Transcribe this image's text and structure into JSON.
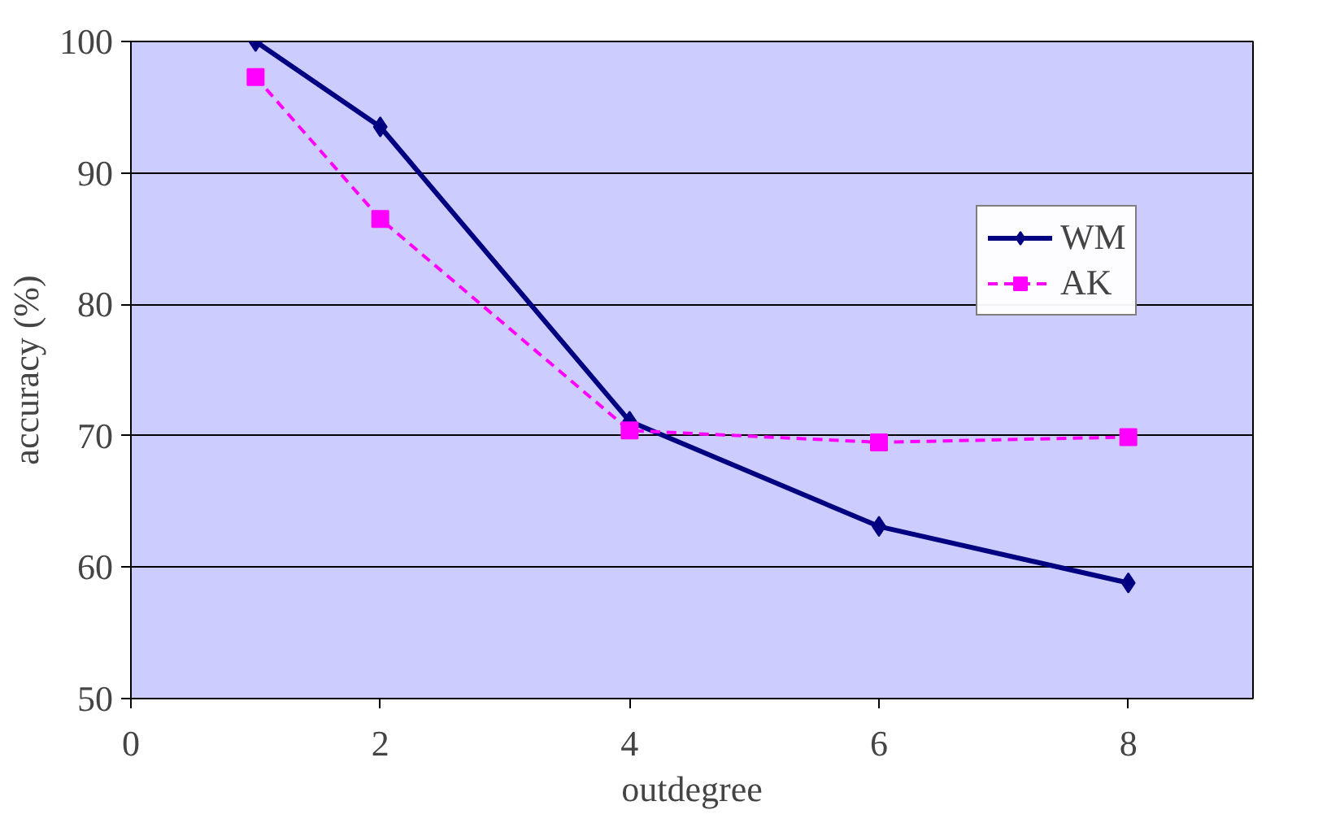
{
  "chart_data": {
    "type": "line",
    "xlabel": "outdegree",
    "ylabel": "accuracy (%)",
    "x": [
      1,
      2,
      4,
      6,
      8
    ],
    "xlim": [
      0,
      9
    ],
    "xticks": [
      0,
      2,
      4,
      6,
      8
    ],
    "ylim": [
      50,
      100
    ],
    "yticks": [
      50,
      60,
      70,
      80,
      90,
      100
    ],
    "grid": "y",
    "legend": "top right",
    "series": [
      {
        "name": "WM",
        "color": "#000080",
        "values": [
          100,
          93.5,
          71.1,
          63.1,
          58.8
        ],
        "marker": "diamond",
        "line_style": "solid"
      },
      {
        "name": "AK",
        "color": "#ff00ff",
        "values": [
          97.3,
          86.5,
          70.4,
          69.5,
          69.9
        ],
        "marker": "square",
        "line_style": "dashed"
      }
    ]
  }
}
